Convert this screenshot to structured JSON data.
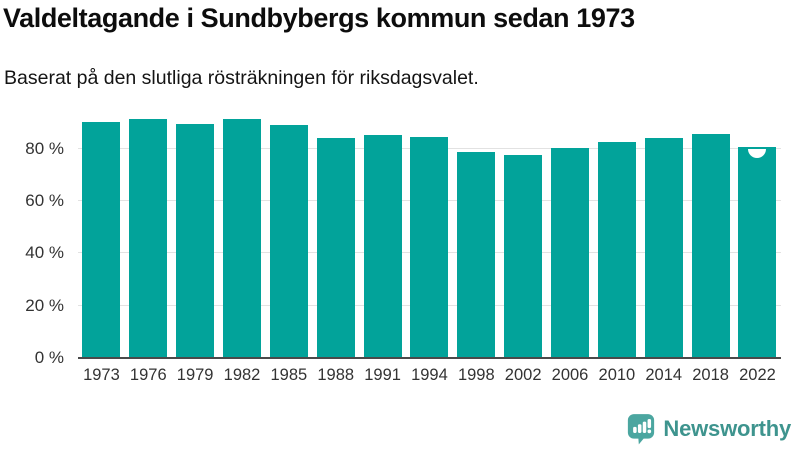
{
  "header": {
    "title": "Valdeltagande i Sundbybergs kommun sedan 1973",
    "subtitle": "Baserat på den slutliga rösträkningen för riksdagsvalet."
  },
  "chart_data": {
    "type": "bar",
    "title": "Valdeltagande i Sundbybergs kommun sedan 1973",
    "subtitle": "Baserat på den slutliga rösträkningen för riksdagsvalet.",
    "categories": [
      "1973",
      "1976",
      "1979",
      "1982",
      "1985",
      "1988",
      "1991",
      "1994",
      "1998",
      "2002",
      "2006",
      "2010",
      "2014",
      "2018",
      "2022"
    ],
    "values": [
      90.2,
      91.2,
      89.4,
      91.2,
      88.9,
      84.2,
      85.2,
      84.3,
      78.8,
      77.7,
      80.3,
      82.4,
      84.1,
      85.7,
      80.8
    ],
    "unit": "%",
    "yticks": [
      0,
      20,
      40,
      60,
      80
    ],
    "ytick_suffix": " %",
    "ylim": [
      0,
      94
    ],
    "grid": true,
    "legend": "none",
    "bar_color": "#02a39a",
    "annotations": {
      "notch_marker_on": "2022"
    }
  },
  "footer": {
    "brand": "Newsworthy",
    "logo_icon": "bar-chart-speech-bubble-icon"
  },
  "colors": {
    "bar": "#02a39a",
    "gridline": "#e2e2e2",
    "axis_line": "#4a4a4a",
    "tick_text": "#333333",
    "title_text": "#0d0d0d",
    "brand_teal": "#3e948e",
    "logo_fill": "#4ba6a0"
  }
}
